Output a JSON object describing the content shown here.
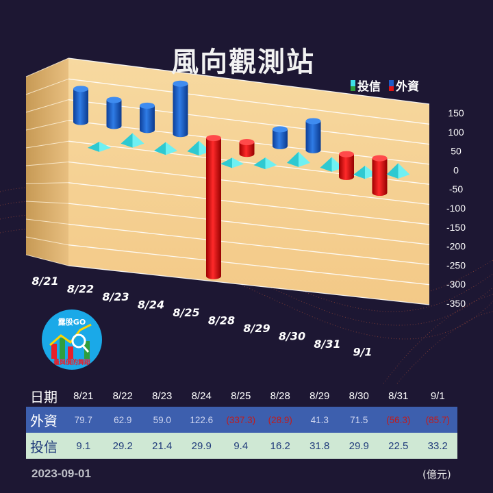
{
  "title": "風向觀測站",
  "legend": {
    "trust_label": "投信",
    "foreign_label": "外資",
    "trust_color": "#3fe0e6",
    "foreign_color": "#1e5bc7",
    "positive_color": "#1e5bc7",
    "negative_color": "#e01515"
  },
  "chart_data": {
    "type": "bar",
    "categories": [
      "8/21",
      "8/22",
      "8/23",
      "8/24",
      "8/25",
      "8/28",
      "8/29",
      "8/30",
      "8/31",
      "9/1"
    ],
    "series": [
      {
        "name": "外資",
        "values": [
          79.7,
          62.9,
          59.0,
          122.6,
          -337.3,
          -28.9,
          41.3,
          71.5,
          -56.3,
          -85.7
        ]
      },
      {
        "name": "投信",
        "values": [
          9.1,
          29.2,
          21.4,
          29.9,
          9.4,
          16.2,
          31.8,
          29.9,
          22.5,
          33.2
        ]
      }
    ],
    "ylim": [
      -350,
      150
    ],
    "yticks": [
      "150",
      "100",
      "50",
      "0",
      "-50",
      "-100",
      "-150",
      "-200",
      "-250",
      "-300",
      "-350"
    ]
  },
  "table": {
    "date_label": "日期",
    "foreign_label": "外資",
    "trust_label": "投信",
    "dates": [
      "8/21",
      "8/22",
      "8/23",
      "8/24",
      "8/25",
      "8/28",
      "8/29",
      "8/30",
      "8/31",
      "9/1"
    ],
    "foreign": [
      "79.7",
      "62.9",
      "59.0",
      "122.6",
      "(337.3)",
      "(28.9)",
      "41.3",
      "71.5",
      "(56.3)",
      "(85.7)"
    ],
    "trust": [
      "9.1",
      "29.2",
      "21.4",
      "29.9",
      "9.4",
      "16.2",
      "31.8",
      "29.9",
      "22.5",
      "33.2"
    ]
  },
  "logo": {
    "top": "露股GO",
    "bottom": "量與價的舞蹈"
  },
  "footer_date": "2023-09-01",
  "unit": "(億元)"
}
